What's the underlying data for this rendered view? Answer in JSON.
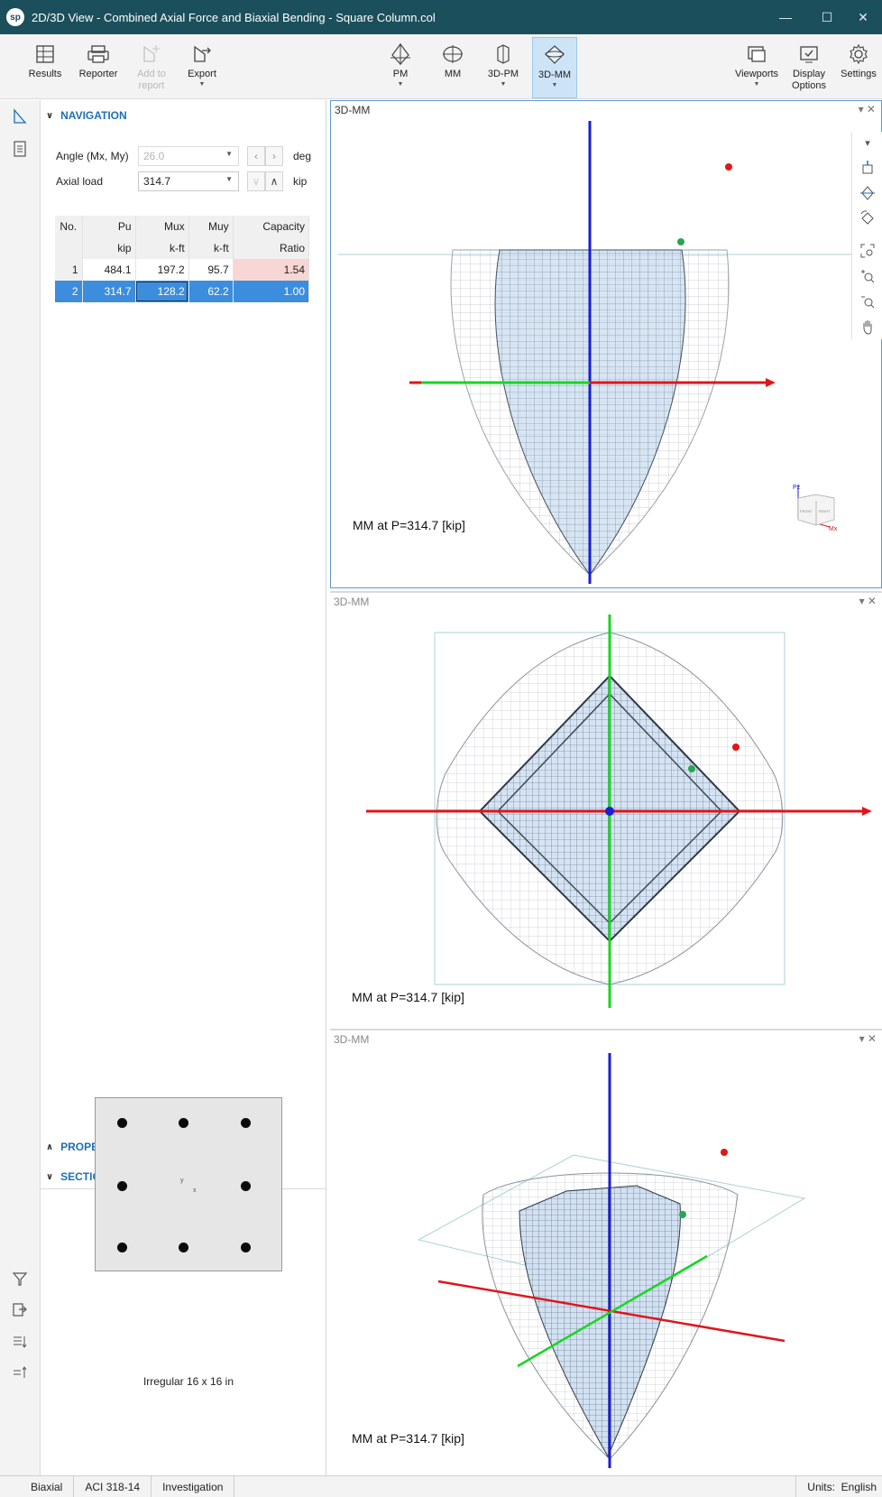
{
  "window": {
    "app_icon": "sp",
    "title": "2D/3D View - Combined Axial Force and Biaxial Bending - Square Column.col",
    "controls": [
      "minimize-icon",
      "maximize-icon",
      "close-icon"
    ]
  },
  "toolbar": {
    "left": [
      {
        "label": "Results",
        "icon": "table-icon"
      },
      {
        "label": "Reporter",
        "icon": "printer-icon"
      },
      {
        "label": "Add to report",
        "icon": "add-report-icon",
        "disabled": true
      },
      {
        "label": "Export",
        "icon": "export-icon"
      }
    ],
    "views": [
      {
        "label": "PM",
        "icon": "pm-icon"
      },
      {
        "label": "MM",
        "icon": "mm-icon"
      },
      {
        "label": "3D-PM",
        "icon": "3d-pm-icon"
      },
      {
        "label": "3D-MM",
        "icon": "3d-mm-icon",
        "active": true
      }
    ],
    "right": [
      {
        "label": "Viewports",
        "icon": "viewports-icon"
      },
      {
        "label": "Display Options",
        "icon": "display-options-icon"
      },
      {
        "label": "Settings",
        "icon": "gear-icon"
      }
    ]
  },
  "navigation": {
    "header": "NAVIGATION",
    "angle_label": "Angle (Mx, My)",
    "angle_value": "26.0",
    "angle_unit": "deg",
    "axial_label": "Axial load",
    "axial_value": "314.7",
    "axial_unit": "kip",
    "table": {
      "headers": [
        "No.",
        "Pu",
        "Mux",
        "Muy",
        "Capacity"
      ],
      "units": [
        "",
        "kip",
        "k-ft",
        "k-ft",
        "Ratio"
      ],
      "rows": [
        [
          "1",
          "484.1",
          "197.2",
          "95.7",
          "1.54"
        ],
        [
          "2",
          "314.7",
          "128.2",
          "62.2",
          "1.00"
        ]
      ],
      "selected_row": 1
    }
  },
  "properties": {
    "header": "PROPERTIES"
  },
  "section": {
    "header": "SECTION",
    "caption": "Irregular 16 x 16 in",
    "axis_y": "y",
    "axis_x": "x"
  },
  "viewports": [
    {
      "title": "3D-MM",
      "label": "MM at P=314.7 [kip]",
      "view": "front",
      "active": true
    },
    {
      "title": "3D-MM",
      "label": "MM at P=314.7 [kip]",
      "view": "top",
      "active": false
    },
    {
      "title": "3D-MM",
      "label": "MM at P=314.7 [kip]",
      "view": "iso",
      "active": false
    }
  ],
  "view_cube": {
    "axis_pz": "Pz",
    "axis_mx": "Mx",
    "face_front": "FRONT",
    "face_right": "RIGHT"
  },
  "viewport_tools": [
    "dropdown-icon",
    "view-top-icon",
    "view-front-icon",
    "rotate-icon",
    "zoom-extents-icon",
    "zoom-in-icon",
    "zoom-out-icon",
    "pan-icon"
  ],
  "statusbar": {
    "items": [
      "Biaxial",
      "ACI 318-14",
      "Investigation"
    ],
    "units_label": "Units:",
    "units_value": "English"
  },
  "colors": {
    "title_bar": "#1b4f5b",
    "accent": "#1e6fb5",
    "selection": "#3c8dde",
    "axis_red": "#e0151b",
    "axis_green": "#17d61f",
    "axis_blue": "#1a1ed6",
    "point_green": "#27a651",
    "point_red": "#e31515",
    "surface_fill": "#c8dbf0"
  }
}
